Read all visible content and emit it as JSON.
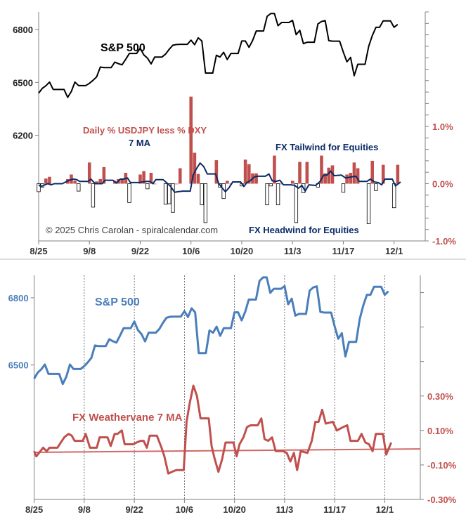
{
  "chart_data": [
    {
      "type": "bar+line",
      "annotations": {
        "sp_label": "S&P 500",
        "bars_label": "Daily % USDJPY less % DXY",
        "ma_label": "7 MA",
        "tailwind": "FX Tailwind for Equities",
        "headwind": "FX Headwind for Equities",
        "copyright": "© 2025 Chris Carolan - spiralcalendar.com"
      },
      "x_ticks": [
        "8/25",
        "9/8",
        "9/22",
        "10/6",
        "10/20",
        "11/3",
        "11/17",
        "12/1"
      ],
      "x_range_days_from_8_25": [
        0,
        106.5
      ],
      "y_left": {
        "range": [
          5600,
          6900
        ],
        "ticks": [
          6200,
          6500,
          6800
        ],
        "labels": [
          "6200",
          "6500",
          "6800"
        ]
      },
      "y_right": {
        "range": [
          -1.0,
          3.0
        ],
        "ticks": [
          -1.0,
          0.0,
          1.0
        ],
        "labels": [
          "-1.0%",
          "0.0%",
          "1.0%"
        ]
      },
      "dates": [
        "8/25",
        "8/26",
        "8/27",
        "8/28",
        "8/29",
        "9/2",
        "9/3",
        "9/4",
        "9/5",
        "9/8",
        "9/9",
        "9/10",
        "9/11",
        "9/12",
        "9/15",
        "9/16",
        "9/17",
        "9/18",
        "9/19",
        "9/22",
        "9/23",
        "9/24",
        "9/25",
        "9/26",
        "9/29",
        "9/30",
        "10/1",
        "10/2",
        "10/3",
        "10/6",
        "10/7",
        "10/8",
        "10/9",
        "10/10",
        "10/13",
        "10/14",
        "10/15",
        "10/16",
        "10/17",
        "10/20",
        "10/21",
        "10/22",
        "10/23",
        "10/24",
        "10/27",
        "10/28",
        "10/29",
        "10/30",
        "10/31",
        "11/3",
        "11/4",
        "11/5",
        "11/6",
        "11/7",
        "11/10",
        "11/11",
        "11/12",
        "11/13",
        "11/14",
        "11/17",
        "11/18",
        "11/19",
        "11/20",
        "11/21",
        "11/24",
        "11/25",
        "11/26",
        "11/28",
        "12/1",
        "12/2"
      ],
      "sp500": [
        6439,
        6466,
        6481,
        6502,
        6460,
        6415,
        6448,
        6502,
        6482,
        6495,
        6512,
        6532,
        6587,
        6584,
        6615,
        6606,
        6600,
        6631,
        6664,
        6694,
        6656,
        6638,
        6605,
        6644,
        6661,
        6688,
        6711,
        6715,
        6716,
        6740,
        6714,
        6753,
        6735,
        6553,
        6654,
        6644,
        6671,
        6630,
        6664,
        6735,
        6735,
        6699,
        6738,
        6792,
        6875,
        6891,
        6891,
        6822,
        6840,
        6852,
        6771,
        6796,
        6720,
        6728,
        6832,
        6846,
        6851,
        6737,
        6734,
        6672,
        6617,
        6642,
        6538,
        6603,
        6705,
        6766,
        6813,
        6849,
        6813,
        6829
      ],
      "daily_usdjpy_less_dxy_pct": [
        -0.14,
        -0.06,
        0.09,
        0.12,
        0.0,
        0.08,
        0.16,
        0.05,
        -0.13,
        0.37,
        -0.41,
        0.04,
        0.08,
        0.29,
        0.05,
        0.08,
        0.09,
        0.19,
        -0.33,
        0.16,
        0.22,
        -0.09,
        0.19,
        0.0,
        -0.36,
        -0.35,
        -0.5,
        0.0,
        0.27,
        1.52,
        0.54,
        0.17,
        -0.37,
        -0.68,
        0.41,
        -0.06,
        -0.26,
        0.05,
        0.0,
        -0.04,
        0.42,
        0.34,
        0.18,
        0.18,
        -0.37,
        -0.04,
        0.49,
        -0.37,
        0.0,
        0.05,
        -0.68,
        0.38,
        -0.16,
        0.38,
        -0.06,
        0.49,
        0.18,
        0.28,
        0.32,
        -0.15,
        0.16,
        0.19,
        0.37,
        0.27,
        -0.7,
        0.4,
        -0.12,
        0.33,
        -0.42,
        0.33
      ],
      "ma7": {
        "day": [
          0,
          0.6,
          2.5,
          3.5,
          4.3,
          6.5,
          8.4,
          9.6,
          10.5,
          11.3,
          13.6,
          14.4,
          15.6,
          17.5,
          18.3,
          20.5,
          21.4,
          22.5,
          23.3,
          24.5,
          25.3,
          27.7,
          28.6,
          29.8,
          30.6,
          31.5,
          32.3,
          34.3,
          35.6,
          36.4,
          37.5,
          38.5,
          39.7,
          41.8,
          42.6,
          43.4,
          44.5,
          45.5,
          46.5,
          48.8,
          49.6,
          50.4,
          51.5,
          52.5,
          53.5,
          55.7,
          56.6,
          57.4,
          58.5,
          59.5,
          60.5,
          62.5,
          63.5,
          64.4,
          65.4,
          66.5,
          67.5,
          69.6,
          70.6,
          71.6,
          72.6,
          73.5,
          74.5,
          76.4,
          77.6,
          78.6,
          79.5,
          80.5,
          81.5,
          83.5,
          84.6,
          86.4,
          87.5,
          88.4,
          90.5,
          91.5,
          92.6,
          93.6,
          94.6,
          95.5,
          97.5,
          98.4,
          99.8
        ],
        "value": [
          -0.02,
          -0.05,
          0,
          -0.02,
          0,
          0,
          0.06,
          0.08,
          0.07,
          0.04,
          0.04,
          0.08,
          0,
          0,
          0.06,
          0.06,
          0.01,
          0.08,
          0.08,
          0.1,
          0.02,
          0.02,
          0.03,
          0.04,
          0.04,
          0,
          0.07,
          0.07,
          0,
          -0.05,
          -0.15,
          -0.14,
          -0.13,
          -0.13,
          0.15,
          0.25,
          0.36,
          0.3,
          0.17,
          0.17,
          0.01,
          -0.06,
          -0.14,
          -0.07,
          0.03,
          0.03,
          -0.05,
          0.02,
          0.06,
          0.12,
          0.13,
          0.13,
          0.17,
          0.05,
          0.04,
          0.06,
          -0.02,
          -0.02,
          -0.03,
          -0.08,
          -0.03,
          -0.13,
          -0.02,
          -0.03,
          0.04,
          0.15,
          0.15,
          0.22,
          0.14,
          0.15,
          0.1,
          0.12,
          0.13,
          0.04,
          0.04,
          0.08,
          0.03,
          0.02,
          -0.02,
          0.08,
          0.08,
          -0.04,
          0.03
        ]
      },
      "colors": {
        "sp500": "#000000",
        "bar_pos": "#c0504d",
        "bar_neg": "#ffffff",
        "ma": "#0b2a66",
        "right_axis": "#c0504d"
      }
    },
    {
      "type": "line",
      "annotations": {
        "sp_label": "S&P 500",
        "fx_label": "FX Weathervane 7 MA"
      },
      "x_ticks": [
        "8/25",
        "9/8",
        "9/22",
        "10/6",
        "10/20",
        "11/3",
        "11/17",
        "12/1"
      ],
      "x_range_days_from_8_25": [
        0,
        108
      ],
      "grid": "vertical dashed at x ticks",
      "y_left": {
        "range": [
          5900,
          6900
        ],
        "ticks": [
          6500,
          6800
        ],
        "labels": [
          "6500",
          "6800"
        ]
      },
      "y_right": {
        "range": [
          -0.3,
          1.0
        ],
        "ticks": [
          -0.3,
          -0.1,
          0.1,
          0.3
        ],
        "labels": [
          "-0.30%",
          "-0.10%",
          "0.10%",
          "0.30%"
        ]
      },
      "dates": [
        "8/25",
        "8/26",
        "8/27",
        "8/28",
        "8/29",
        "9/2",
        "9/3",
        "9/4",
        "9/5",
        "9/8",
        "9/9",
        "9/10",
        "9/11",
        "9/12",
        "9/15",
        "9/16",
        "9/17",
        "9/18",
        "9/19",
        "9/22",
        "9/23",
        "9/24",
        "9/25",
        "9/26",
        "9/29",
        "9/30",
        "10/1",
        "10/2",
        "10/3",
        "10/6",
        "10/7",
        "10/8",
        "10/9",
        "10/10",
        "10/13",
        "10/14",
        "10/15",
        "10/16",
        "10/17",
        "10/20",
        "10/21",
        "10/22",
        "10/23",
        "10/24",
        "10/27",
        "10/28",
        "10/29",
        "10/30",
        "10/31",
        "11/3",
        "11/4",
        "11/5",
        "11/6",
        "11/7",
        "11/10",
        "11/11",
        "11/12",
        "11/13",
        "11/14",
        "11/17",
        "11/18",
        "11/19",
        "11/20",
        "11/21",
        "11/24",
        "11/25",
        "11/26",
        "11/28",
        "12/1",
        "12/2"
      ],
      "sp500": [
        6439,
        6466,
        6481,
        6502,
        6460,
        6415,
        6448,
        6502,
        6482,
        6495,
        6512,
        6532,
        6587,
        6584,
        6615,
        6606,
        6600,
        6631,
        6664,
        6694,
        6656,
        6638,
        6605,
        6644,
        6661,
        6688,
        6711,
        6715,
        6716,
        6740,
        6714,
        6753,
        6735,
        6553,
        6654,
        6644,
        6671,
        6630,
        6664,
        6735,
        6735,
        6699,
        6738,
        6792,
        6875,
        6891,
        6891,
        6822,
        6840,
        6852,
        6771,
        6796,
        6720,
        6728,
        6832,
        6846,
        6851,
        6737,
        6734,
        6672,
        6617,
        6642,
        6538,
        6603,
        6705,
        6766,
        6813,
        6849,
        6813,
        6829
      ],
      "weathervane": {
        "day": [
          0,
          0.6,
          2.5,
          3.5,
          4.3,
          6.5,
          8.4,
          9.6,
          10.5,
          11.3,
          13.6,
          14.4,
          15.6,
          17.5,
          18.3,
          20.5,
          21.4,
          22.5,
          23.3,
          24.5,
          25.3,
          27.7,
          28.6,
          29.8,
          30.6,
          31.5,
          32.3,
          34.3,
          35.6,
          36.4,
          37.5,
          38.5,
          39.7,
          41.8,
          42.6,
          43.4,
          44.5,
          45.5,
          46.5,
          48.8,
          49.6,
          50.4,
          51.5,
          52.5,
          53.5,
          55.7,
          56.6,
          57.4,
          58.5,
          59.5,
          60.5,
          62.5,
          63.5,
          64.4,
          65.4,
          66.5,
          67.5,
          69.6,
          70.6,
          71.6,
          72.6,
          73.5,
          74.5,
          76.4,
          77.6,
          78.6,
          79.5,
          80.5,
          81.5,
          83.5,
          84.6,
          86.4,
          87.5,
          88.4,
          90.5,
          91.5,
          92.6,
          93.6,
          94.6,
          95.5,
          97.5,
          98.4,
          99.8
        ],
        "value": [
          -0.02,
          -0.05,
          0,
          -0.02,
          0,
          0,
          0.06,
          0.08,
          0.07,
          0.04,
          0.04,
          0.08,
          0,
          0,
          0.06,
          0.06,
          0.01,
          0.08,
          0.08,
          0.1,
          0.02,
          0.02,
          0.03,
          0.04,
          0.04,
          0,
          0.07,
          0.07,
          0,
          -0.05,
          -0.15,
          -0.14,
          -0.13,
          -0.13,
          0.15,
          0.25,
          0.36,
          0.3,
          0.17,
          0.17,
          0.01,
          -0.06,
          -0.14,
          -0.07,
          0.03,
          0.03,
          -0.05,
          0.02,
          0.06,
          0.12,
          0.13,
          0.13,
          0.17,
          0.05,
          0.04,
          0.06,
          -0.02,
          -0.02,
          -0.03,
          -0.08,
          -0.03,
          -0.13,
          -0.02,
          -0.03,
          0.04,
          0.15,
          0.15,
          0.22,
          0.14,
          0.15,
          0.1,
          0.12,
          0.13,
          0.04,
          0.04,
          0.08,
          0.03,
          0.02,
          -0.02,
          0.08,
          0.08,
          -0.04,
          0.03
        ]
      },
      "trendline": {
        "start_value": -0.027,
        "end_value": -0.007
      },
      "colors": {
        "sp500": "#4a7ebb",
        "weathervane": "#c0504d",
        "trend": "#cf6a66"
      }
    }
  ]
}
